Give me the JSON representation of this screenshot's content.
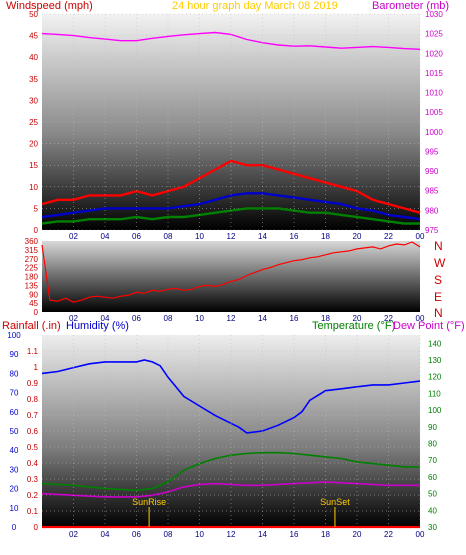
{
  "chart_data": [
    {
      "type": "line",
      "title": "24 hour graph day   March 08 2019",
      "left_axis_label": "Windspeed (mph)",
      "right_axis_label": "Barometer (mb)",
      "x_ticks": [
        "02",
        "04",
        "06",
        "08",
        "10",
        "12",
        "14",
        "16",
        "18",
        "20",
        "22",
        "00"
      ],
      "x_range_hours": [
        0,
        24
      ],
      "left_ylim": [
        0,
        50
      ],
      "left_ticks": [
        0,
        5,
        10,
        15,
        20,
        25,
        30,
        35,
        40,
        45,
        50
      ],
      "right_ylim": [
        975,
        1030
      ],
      "right_ticks": [
        975,
        980,
        985,
        990,
        995,
        1000,
        1005,
        1010,
        1015,
        1020,
        1025,
        1030
      ],
      "series": [
        {
          "color": "#ff00ff",
          "axis": "right",
          "x": [
            0,
            1,
            2,
            3,
            4,
            5,
            6,
            7,
            8,
            9,
            10,
            11,
            12,
            13,
            14,
            15,
            16,
            17,
            18,
            19,
            20,
            21,
            22,
            23,
            24
          ],
          "values": [
            1025,
            1024.8,
            1024.5,
            1024,
            1023.6,
            1023.2,
            1023.2,
            1023.8,
            1024.3,
            1024.7,
            1025,
            1025.3,
            1024.8,
            1023.5,
            1022.7,
            1022.1,
            1021.8,
            1021.9,
            1021.6,
            1021.3,
            1021.5,
            1021.7,
            1021.5,
            1021.2,
            1021
          ]
        },
        {
          "color": "#ff0000",
          "axis": "left",
          "x": [
            0,
            1,
            2,
            3,
            4,
            5,
            6,
            7,
            8,
            9,
            10,
            11,
            12,
            13,
            14,
            15,
            16,
            17,
            18,
            19,
            20,
            21,
            22,
            23,
            24
          ],
          "values": [
            6,
            7,
            7,
            8,
            8,
            8,
            9,
            8,
            9,
            10,
            12,
            14,
            16,
            15,
            15,
            14,
            13,
            12,
            11,
            10,
            9,
            7,
            6,
            5,
            4
          ]
        },
        {
          "color": "#0000cc",
          "axis": "left",
          "x": [
            0,
            1,
            2,
            3,
            4,
            5,
            6,
            7,
            8,
            9,
            10,
            11,
            12,
            13,
            14,
            15,
            16,
            17,
            18,
            19,
            20,
            21,
            22,
            23,
            24
          ],
          "values": [
            3,
            3.5,
            4,
            4.5,
            5,
            5,
            5,
            5,
            5,
            5.5,
            6,
            7,
            8,
            8.5,
            8.5,
            8,
            7.5,
            7,
            6.5,
            6,
            5,
            4.5,
            3.5,
            3,
            2.5
          ]
        },
        {
          "color": "#008000",
          "axis": "left",
          "x": [
            0,
            1,
            2,
            3,
            4,
            5,
            6,
            7,
            8,
            9,
            10,
            11,
            12,
            13,
            14,
            15,
            16,
            17,
            18,
            19,
            20,
            21,
            22,
            23,
            24
          ],
          "values": [
            1.5,
            2,
            2,
            2.5,
            2.5,
            2.5,
            3,
            2.5,
            3,
            3,
            3.5,
            4,
            4.5,
            5,
            5,
            5,
            4.5,
            4,
            4,
            3.5,
            3,
            2.5,
            2,
            1.5,
            1.5
          ]
        }
      ]
    },
    {
      "type": "line",
      "x_ticks": [
        "02",
        "04",
        "06",
        "08",
        "10",
        "12",
        "14",
        "16",
        "18",
        "20",
        "22",
        "00"
      ],
      "x_range_hours": [
        0,
        24
      ],
      "ylim": [
        0,
        360
      ],
      "left_ticks": [
        0,
        45,
        90,
        135,
        180,
        225,
        270,
        315,
        360
      ],
      "direction_labels": [
        "N",
        "W",
        "S",
        "E",
        "N"
      ],
      "series": [
        {
          "color": "#ff0000",
          "x": [
            0,
            0.5,
            1,
            1.5,
            2,
            2.5,
            3,
            3.5,
            4,
            4.5,
            5,
            5.5,
            6,
            6.5,
            7,
            7.5,
            8,
            8.5,
            9,
            9.5,
            10,
            10.5,
            11,
            11.5,
            12,
            12.5,
            13,
            13.5,
            14,
            14.5,
            15,
            15.5,
            16,
            16.5,
            17,
            17.5,
            18,
            18.5,
            19,
            19.5,
            20,
            20.5,
            21,
            21.5,
            22,
            22.5,
            23,
            23.5,
            24
          ],
          "values": [
            340,
            60,
            55,
            70,
            50,
            60,
            75,
            80,
            75,
            70,
            80,
            85,
            100,
            95,
            110,
            105,
            115,
            120,
            110,
            115,
            130,
            135,
            130,
            140,
            155,
            165,
            185,
            200,
            215,
            225,
            240,
            250,
            260,
            265,
            275,
            280,
            290,
            300,
            305,
            310,
            320,
            325,
            330,
            320,
            335,
            345,
            340,
            355,
            330
          ]
        }
      ]
    },
    {
      "type": "line",
      "left_axis_label_1": "Rainfall (.in)",
      "left_axis_label_2": "Humidity (%)",
      "right_axis_label_1": "Temperature (°F)",
      "right_axis_label_2": "Dew Point (°F)",
      "x_ticks": [
        "02",
        "04",
        "06",
        "08",
        "10",
        "12",
        "14",
        "16",
        "18",
        "20",
        "22",
        "00"
      ],
      "x_range_hours": [
        0,
        24
      ],
      "rain_ticks": [
        0,
        0.1,
        0.2,
        0.3,
        0.4,
        0.5,
        0.6,
        0.7,
        0.8,
        0.9,
        1,
        1.1
      ],
      "rain_ylim": [
        0,
        1.2
      ],
      "humidity_ticks": [
        0,
        10,
        20,
        30,
        40,
        50,
        60,
        70,
        80,
        90,
        100
      ],
      "humidity_ylim": [
        0,
        100
      ],
      "temp_ticks": [
        30,
        40,
        50,
        60,
        70,
        80,
        90,
        100,
        110,
        120,
        130,
        140
      ],
      "temp_ylim": [
        30,
        145
      ],
      "annotations": [
        {
          "text": "SunRise",
          "x": 6.8
        },
        {
          "text": "SunSet",
          "x": 18.6
        }
      ],
      "series": [
        {
          "color": "#0000ff",
          "axis": "humidity",
          "x": [
            0,
            1,
            2,
            3,
            4,
            5,
            6,
            6.5,
            7,
            7.5,
            8,
            9,
            10,
            11,
            12,
            12.5,
            13,
            14,
            15,
            16,
            16.5,
            17,
            18,
            19,
            20,
            21,
            22,
            23,
            24
          ],
          "values": [
            80,
            81,
            83,
            85,
            86,
            86,
            86,
            87,
            86,
            84,
            78,
            68,
            63,
            58,
            54,
            52,
            49,
            50,
            53,
            57,
            60,
            66,
            71,
            72,
            73,
            74,
            74,
            75,
            76
          ]
        },
        {
          "color": "#008000",
          "axis": "temperature",
          "x": [
            0,
            2,
            4,
            6,
            7,
            8,
            9,
            10,
            11,
            12,
            13,
            14,
            15,
            16,
            17,
            18,
            19,
            20,
            21,
            22,
            23,
            24
          ],
          "values": [
            56,
            55,
            53,
            52,
            53,
            57,
            64,
            68,
            71,
            73,
            74,
            74.5,
            74.5,
            74,
            73,
            72,
            71,
            69,
            68,
            67,
            66,
            66
          ]
        },
        {
          "color": "#cc00cc",
          "axis": "temperature",
          "x": [
            0,
            2,
            4,
            6,
            7,
            8,
            9,
            10,
            11,
            12,
            13,
            14,
            15,
            16,
            17,
            18,
            19,
            20,
            21,
            22,
            23,
            24
          ],
          "values": [
            50,
            49,
            48,
            48,
            49,
            51,
            54,
            55.5,
            56,
            55.5,
            55,
            55,
            55.5,
            56,
            56.5,
            57,
            56.5,
            56,
            55.5,
            55,
            55,
            55
          ]
        },
        {
          "color": "#ff0000",
          "axis": "rain",
          "x": [
            0,
            24
          ],
          "values": [
            0,
            0
          ]
        }
      ]
    }
  ]
}
